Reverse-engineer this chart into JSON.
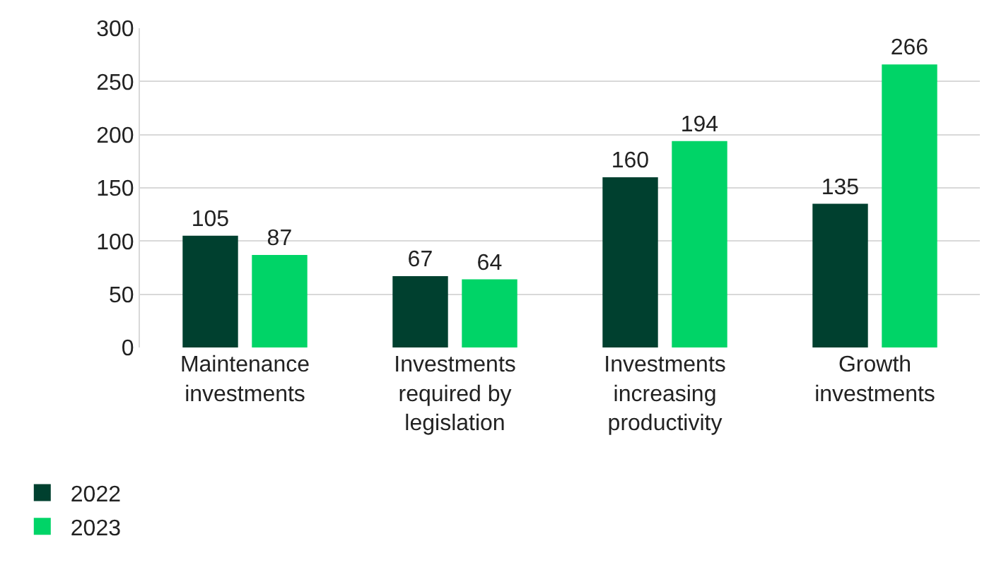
{
  "chart_data": {
    "type": "bar",
    "categories": [
      "Maintenance investments",
      "Investments required by legislation",
      "Investments increasing productivity",
      "Growth investments"
    ],
    "series": [
      {
        "name": "2022",
        "color": "#00402f",
        "values": [
          105,
          67,
          160,
          135
        ]
      },
      {
        "name": "2023",
        "color": "#00d467",
        "values": [
          87,
          64,
          194,
          266
        ]
      }
    ],
    "ylim": [
      0,
      300
    ],
    "yticks": [
      0,
      50,
      100,
      150,
      200,
      250,
      300
    ],
    "grid": "y",
    "data_labels": true,
    "legend": "bottom left"
  }
}
